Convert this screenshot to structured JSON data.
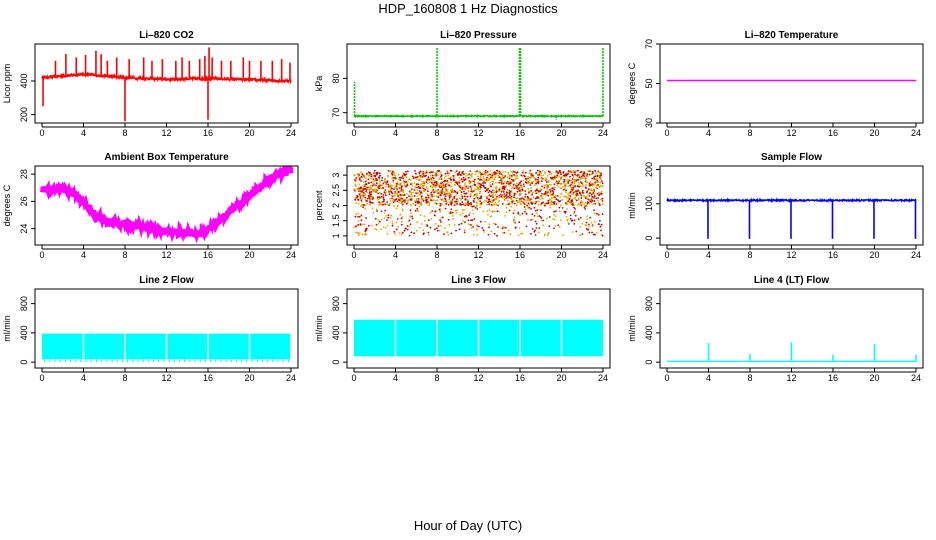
{
  "page": {
    "title": "HDP_160808  1 Hz Diagnostics",
    "xlabel": "Hour of Day (UTC)"
  },
  "colors": {
    "co2": "#ff0000",
    "pressure": "#00c000",
    "temperature": "#ff00ff",
    "ambient": "#ff00ff",
    "rh": "#e6a800",
    "rh_dots": "#cc0000",
    "sample_flow": "#0000ff",
    "line_flow": "#00ffff"
  },
  "chart_data": [
    {
      "id": "co2",
      "type": "line",
      "title": "Li–820 CO2",
      "ylabel": "Licor ppm",
      "xlim": [
        0,
        24
      ],
      "xticks": [
        0,
        4,
        8,
        12,
        16,
        20,
        24
      ],
      "ylim": [
        150,
        620
      ],
      "yticks": [
        200,
        400
      ],
      "series": [
        {
          "color_key": "co2",
          "baseline": 420,
          "noise": 8,
          "trend": [
            [
              0,
              420
            ],
            [
              4,
              440
            ],
            [
              6,
              430
            ],
            [
              8,
              420
            ],
            [
              12,
              410
            ],
            [
              16,
              415
            ],
            [
              24,
              400
            ]
          ],
          "spikes": [
            [
              0.1,
              250
            ],
            [
              1.3,
              520
            ],
            [
              2.3,
              560
            ],
            [
              3.3,
              540
            ],
            [
              4.2,
              555
            ],
            [
              5.2,
              580
            ],
            [
              5.7,
              560
            ],
            [
              6.3,
              520
            ],
            [
              7.2,
              540
            ],
            [
              8.0,
              160
            ],
            [
              8.4,
              530
            ],
            [
              9.8,
              540
            ],
            [
              10.6,
              520
            ],
            [
              11.6,
              530
            ],
            [
              12.9,
              520
            ],
            [
              13.5,
              540
            ],
            [
              14.2,
              520
            ],
            [
              15.2,
              530
            ],
            [
              15.7,
              550
            ],
            [
              16.0,
              170
            ],
            [
              16.1,
              600
            ],
            [
              16.4,
              540
            ],
            [
              17.3,
              520
            ],
            [
              18.2,
              520
            ],
            [
              19.4,
              540
            ],
            [
              20.0,
              520
            ],
            [
              21.1,
              520
            ],
            [
              22.2,
              520
            ],
            [
              23.1,
              530
            ],
            [
              23.9,
              510
            ]
          ]
        }
      ]
    },
    {
      "id": "pressure",
      "type": "line",
      "title": "Li–820 Pressure",
      "ylabel": "kPa",
      "xlim": [
        0,
        24
      ],
      "xticks": [
        0,
        4,
        8,
        12,
        16,
        20,
        24
      ],
      "ylim": [
        67,
        90
      ],
      "yticks": [
        70,
        80
      ],
      "series": [
        {
          "color_key": "pressure",
          "baseline": 69,
          "noise": 0.15,
          "trend": [
            [
              0,
              69
            ],
            [
              24,
              69
            ]
          ],
          "spikes": [
            [
              0.05,
              79
            ],
            [
              8.0,
              89
            ],
            [
              15.95,
              89
            ],
            [
              16.05,
              89
            ],
            [
              19.5,
              68
            ],
            [
              24.0,
              89
            ]
          ]
        }
      ]
    },
    {
      "id": "temperature",
      "type": "line",
      "title": "Li–820 Temperature",
      "ylabel": "degrees C",
      "xlim": [
        0,
        24
      ],
      "xticks": [
        0,
        4,
        8,
        12,
        16,
        20,
        24
      ],
      "ylim": [
        30,
        70
      ],
      "yticks": [
        30,
        50,
        70
      ],
      "series": [
        {
          "color_key": "temperature",
          "baseline": 51.5,
          "noise": 0,
          "trend": [
            [
              0,
              51.5
            ],
            [
              24,
              51.5
            ]
          ],
          "spikes": []
        }
      ]
    },
    {
      "id": "ambient",
      "type": "line",
      "title": "Ambient Box Temperature",
      "ylabel": "degrees C",
      "xlim": [
        0,
        24
      ],
      "xticks": [
        0,
        4,
        8,
        12,
        16,
        20,
        24
      ],
      "ylim": [
        22.8,
        28.6
      ],
      "yticks": [
        24,
        26,
        28
      ],
      "series": [
        {
          "color_key": "ambient",
          "baseline": 25,
          "noise": 0.25,
          "trend": [
            [
              0,
              26.9
            ],
            [
              2,
              26.9
            ],
            [
              3,
              26.6
            ],
            [
              4,
              26.0
            ],
            [
              5,
              25.1
            ],
            [
              6,
              24.6
            ],
            [
              8,
              24.3
            ],
            [
              10,
              24.1
            ],
            [
              12,
              23.8
            ],
            [
              14,
              23.7
            ],
            [
              15.5,
              23.6
            ],
            [
              16.5,
              24.2
            ],
            [
              18,
              25.2
            ],
            [
              20,
              26.4
            ],
            [
              22,
              27.6
            ],
            [
              23,
              28.1
            ],
            [
              24,
              28.3
            ]
          ],
          "spikes": []
        }
      ]
    },
    {
      "id": "rh",
      "type": "scatter",
      "title": "Gas Stream RH",
      "ylabel": "percent",
      "xlim": [
        0,
        24
      ],
      "xticks": [
        0,
        4,
        8,
        12,
        16,
        20,
        24
      ],
      "ylim": [
        0.7,
        3.3
      ],
      "yticks": [
        1.0,
        1.5,
        2.0,
        2.5,
        3.0
      ],
      "series": [
        {
          "color_key": "rh",
          "low": 1.0,
          "high": 3.15,
          "dense_top": 2.0
        }
      ]
    },
    {
      "id": "sample_flow",
      "type": "line",
      "title": "Sample Flow",
      "ylabel": "ml/min",
      "xlim": [
        0,
        24
      ],
      "xticks": [
        0,
        4,
        8,
        12,
        16,
        20,
        24
      ],
      "ylim": [
        -20,
        210
      ],
      "yticks": [
        0,
        100,
        200
      ],
      "series": [
        {
          "color_key": "sample_flow",
          "baseline": 110,
          "noise": 2,
          "trend": [
            [
              0,
              110
            ],
            [
              24,
              110
            ]
          ],
          "spikes": [
            [
              3.95,
              -2
            ],
            [
              7.95,
              -2
            ],
            [
              11.95,
              -2
            ],
            [
              15.95,
              -2
            ],
            [
              19.95,
              -2
            ],
            [
              23.95,
              -2
            ]
          ]
        }
      ]
    },
    {
      "id": "line2",
      "type": "area",
      "title": "Line 2 Flow",
      "ylabel": "ml/min",
      "xlim": [
        0,
        24
      ],
      "xticks": [
        0,
        4,
        8,
        12,
        16,
        20,
        24
      ],
      "ylim": [
        -80,
        1000
      ],
      "yticks": [
        0,
        400,
        800
      ],
      "series": [
        {
          "color_key": "line_flow",
          "top": 390,
          "bottom": 40,
          "period": 0.5,
          "gaps": [
            4,
            8,
            12,
            16,
            20,
            24
          ]
        }
      ]
    },
    {
      "id": "line3",
      "type": "area",
      "title": "Line 3 Flow",
      "ylabel": "ml/min",
      "xlim": [
        0,
        24
      ],
      "xticks": [
        0,
        4,
        8,
        12,
        16,
        20,
        24
      ],
      "ylim": [
        -80,
        1000
      ],
      "yticks": [
        0,
        400,
        800
      ],
      "series": [
        {
          "color_key": "line_flow",
          "top": 580,
          "bottom": 80,
          "period": 0,
          "gaps": [
            4,
            8,
            12,
            16,
            20
          ]
        }
      ]
    },
    {
      "id": "line4",
      "type": "line",
      "title": "Line 4 (LT) Flow",
      "ylabel": "ml/min",
      "xlim": [
        0,
        24
      ],
      "xticks": [
        0,
        4,
        8,
        12,
        16,
        20,
        24
      ],
      "ylim": [
        -80,
        1000
      ],
      "yticks": [
        0,
        400,
        800
      ],
      "series": [
        {
          "color_key": "line_flow",
          "baseline": 10,
          "noise": 0,
          "trend": [
            [
              0,
              10
            ],
            [
              24,
              10
            ]
          ],
          "spikes": [
            [
              4.0,
              260
            ],
            [
              8.0,
              110
            ],
            [
              12.0,
              270
            ],
            [
              16.0,
              100
            ],
            [
              20.0,
              250
            ],
            [
              24.0,
              100
            ]
          ]
        }
      ]
    }
  ]
}
